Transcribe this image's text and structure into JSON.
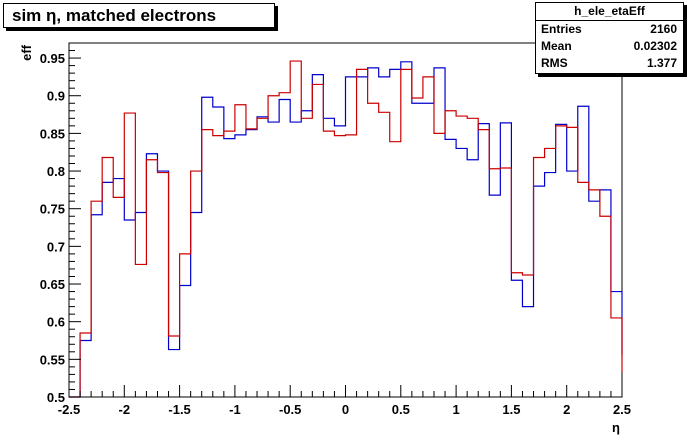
{
  "title": "sim η,  matched electrons",
  "stats": {
    "name": "h_ele_etaEff",
    "rows": [
      {
        "label": "Entries",
        "value": "2160"
      },
      {
        "label": "Mean",
        "value": "0.02302"
      },
      {
        "label": "RMS",
        "value": "1.377"
      }
    ]
  },
  "chart_data": {
    "type": "line",
    "xlabel": "η",
    "ylabel": "eff",
    "xlim": [
      -2.5,
      2.5
    ],
    "ylim": [
      0.5,
      0.97
    ],
    "x_ticks": [
      -2.5,
      -2,
      -1.5,
      -1,
      -0.5,
      0,
      0.5,
      1,
      1.5,
      2,
      2.5
    ],
    "x_tick_labels": [
      "-2.5",
      "-2",
      "-1.5",
      "-1",
      "-0.5",
      "0",
      "0.5",
      "1",
      "1.5",
      "2",
      "2.5"
    ],
    "y_ticks": [
      0.5,
      0.55,
      0.6,
      0.65,
      0.7,
      0.75,
      0.8,
      0.85,
      0.9,
      0.95
    ],
    "y_tick_labels": [
      "0.5",
      "0.55",
      "0.6",
      "0.65",
      "0.7",
      "0.75",
      "0.8",
      "0.85",
      "0.9",
      "0.95"
    ],
    "bin_edges": [
      -2.5,
      -2.4,
      -2.3,
      -2.2,
      -2.1,
      -2.0,
      -1.9,
      -1.8,
      -1.7,
      -1.6,
      -1.5,
      -1.4,
      -1.3,
      -1.2,
      -1.1,
      -1.0,
      -0.9,
      -0.8,
      -0.7,
      -0.6,
      -0.5,
      -0.4,
      -0.3,
      -0.2,
      -0.1,
      0.0,
      0.1,
      0.2,
      0.3,
      0.4,
      0.5,
      0.6,
      0.7,
      0.8,
      0.9,
      1.0,
      1.1,
      1.2,
      1.3,
      1.4,
      1.5,
      1.6,
      1.7,
      1.8,
      1.9,
      2.0,
      2.1,
      2.2,
      2.3,
      2.4,
      2.5
    ],
    "series": [
      {
        "color": "#0000cc",
        "values": [
          0.5,
          0.575,
          0.742,
          0.785,
          0.79,
          0.735,
          0.745,
          0.823,
          0.8,
          0.563,
          0.648,
          0.745,
          0.898,
          0.885,
          0.843,
          0.848,
          0.855,
          0.872,
          0.865,
          0.895,
          0.865,
          0.88,
          0.928,
          0.87,
          0.86,
          0.925,
          0.925,
          0.937,
          0.925,
          0.935,
          0.945,
          0.89,
          0.89,
          0.937,
          0.842,
          0.83,
          0.815,
          0.863,
          0.768,
          0.864,
          0.655,
          0.62,
          0.78,
          0.798,
          0.862,
          0.8,
          0.886,
          0.76,
          0.775,
          0.64,
          0.556
        ]
      },
      {
        "color": "#cc0000",
        "values": [
          0.5,
          0.585,
          0.76,
          0.818,
          0.765,
          0.877,
          0.676,
          0.815,
          0.798,
          0.581,
          0.69,
          0.8,
          0.855,
          0.847,
          0.853,
          0.888,
          0.856,
          0.87,
          0.9,
          0.904,
          0.946,
          0.87,
          0.915,
          0.853,
          0.847,
          0.848,
          0.935,
          0.89,
          0.878,
          0.839,
          0.935,
          0.897,
          0.925,
          0.85,
          0.88,
          0.873,
          0.87,
          0.855,
          0.803,
          0.804,
          0.665,
          0.662,
          0.818,
          0.83,
          0.86,
          0.858,
          0.785,
          0.775,
          0.74,
          0.605,
          0.533
        ]
      }
    ]
  }
}
